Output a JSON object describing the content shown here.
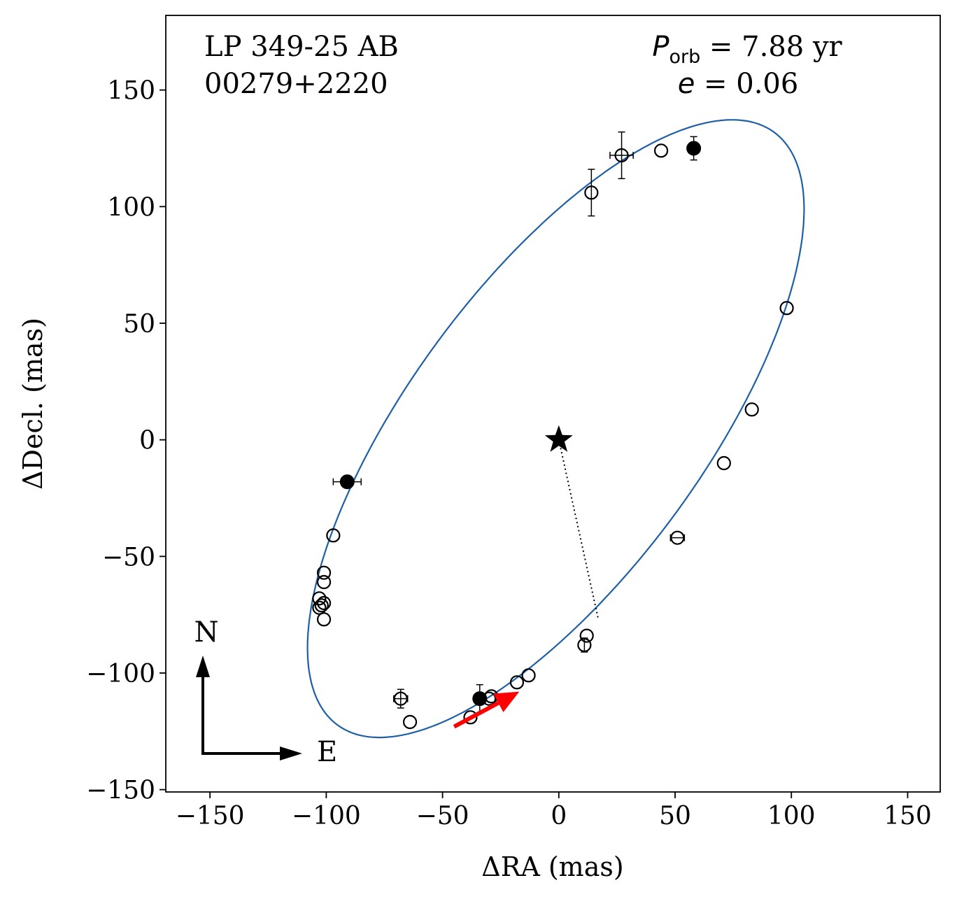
{
  "chart_data": {
    "type": "scatter",
    "title_left": {
      "system_name": "LP 349-25 AB",
      "system_id": "00279+2220"
    },
    "title_right": {
      "period_symbol": "P",
      "period_subscript": "orb",
      "period_text": " =  7.88 yr",
      "ecc_symbol": "e",
      "ecc_text": " = 0.06"
    },
    "xlabel": "ΔRA  (mas)",
    "ylabel": "ΔDecl.  (mas)",
    "xlim": [
      -169,
      164
    ],
    "ylim": [
      -151,
      182
    ],
    "xticks": [
      -150,
      -100,
      -50,
      0,
      50,
      100,
      150
    ],
    "yticks": [
      -150,
      -100,
      -50,
      0,
      50,
      100,
      150
    ],
    "xtick_labels": [
      "−150",
      "−100",
      "−50",
      "0",
      "50",
      "100",
      "150"
    ],
    "ytick_labels": [
      "−150",
      "−100",
      "−50",
      "0",
      "50",
      "100",
      "150"
    ],
    "orbit_color": "#1f5fa6",
    "orbit": {
      "center": [
        -1.3,
        4.8
      ],
      "semi_major": 158,
      "semi_minor": 63,
      "angle_deg": 53.5
    },
    "primary": {
      "x": 0,
      "y": 0,
      "symbol": "star"
    },
    "periastron_line": {
      "x1": 0,
      "y1": 0,
      "x2": 17,
      "y2": -77
    },
    "motion_arrow": {
      "x1": -45,
      "y1": -123,
      "x2": -17,
      "y2": -108,
      "color": "#ff0000"
    },
    "compass": {
      "north_label": "N",
      "east_label": "E"
    },
    "open_points": [
      {
        "x": 27,
        "y": 122,
        "xerr": 5,
        "yerr": 10
      },
      {
        "x": 44,
        "y": 124,
        "xerr": 0,
        "yerr": 0
      },
      {
        "x": 14,
        "y": 106,
        "xerr": 0,
        "yerr": 10
      },
      {
        "x": 98,
        "y": 56.5,
        "xerr": 0,
        "yerr": 0
      },
      {
        "x": 83,
        "y": 13,
        "xerr": 0,
        "yerr": 0
      },
      {
        "x": 71,
        "y": -10,
        "xerr": 0,
        "yerr": 0
      },
      {
        "x": 51,
        "y": -42,
        "xerr": 3,
        "yerr": 0
      },
      {
        "x": 12,
        "y": -84,
        "xerr": 0,
        "yerr": 0
      },
      {
        "x": 11,
        "y": -88,
        "xerr": 0,
        "yerr": 3
      },
      {
        "x": -13,
        "y": -101,
        "xerr": 0,
        "yerr": 0
      },
      {
        "x": -18,
        "y": -104,
        "xerr": 0,
        "yerr": 0
      },
      {
        "x": -29,
        "y": -110,
        "xerr": 0,
        "yerr": 0
      },
      {
        "x": -30,
        "y": -111,
        "xerr": 0,
        "yerr": 0
      },
      {
        "x": -38,
        "y": -119,
        "xerr": 0,
        "yerr": 0
      },
      {
        "x": -64,
        "y": -121,
        "xerr": 0,
        "yerr": 0
      },
      {
        "x": -68,
        "y": -111,
        "xerr": 3,
        "yerr": 4
      },
      {
        "x": -97,
        "y": -41,
        "xerr": 0,
        "yerr": 0
      },
      {
        "x": -101,
        "y": -57,
        "xerr": 0,
        "yerr": 0
      },
      {
        "x": -101,
        "y": -61,
        "xerr": 0,
        "yerr": 0
      },
      {
        "x": -103,
        "y": -68,
        "xerr": 0,
        "yerr": 0
      },
      {
        "x": -101,
        "y": -70,
        "xerr": 0,
        "yerr": 0
      },
      {
        "x": -102,
        "y": -71,
        "xerr": 0,
        "yerr": 0
      },
      {
        "x": -103,
        "y": -72,
        "xerr": 0,
        "yerr": 0
      },
      {
        "x": -101,
        "y": -77,
        "xerr": 0,
        "yerr": 0
      }
    ],
    "filled_points": [
      {
        "x": 58,
        "y": 125,
        "xerr": 0,
        "yerr": 5
      },
      {
        "x": -91,
        "y": -18,
        "xerr": 6,
        "yerr": 0
      },
      {
        "x": -34,
        "y": -111,
        "xerr": 0,
        "yerr": 6
      }
    ]
  }
}
